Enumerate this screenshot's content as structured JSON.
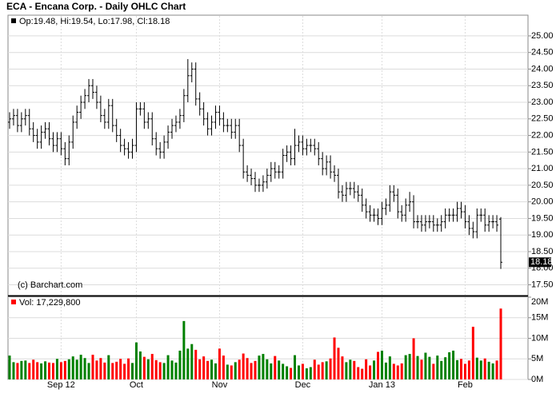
{
  "chart_data": [
    {
      "type": "ohlc",
      "title": "ECA - Encana Corp. - Daily OHLC Chart",
      "legend": "Op:19.48, Hi:19.54, Lo:17.98, Cl:18.18",
      "watermark": "(c) Barchart.com",
      "color": "#000000",
      "grid": true,
      "ylim": [
        17.2,
        25.6
      ],
      "yticks": [
        {
          "value": 17.5,
          "label": "17.50"
        },
        {
          "value": 18,
          "label": "18.00"
        },
        {
          "value": 18.5,
          "label": "18.50"
        },
        {
          "value": 19,
          "label": "19.00"
        },
        {
          "value": 19.5,
          "label": "19.50"
        },
        {
          "value": 20,
          "label": "20.00"
        },
        {
          "value": 20.5,
          "label": "20.50"
        },
        {
          "value": 21,
          "label": "21.00"
        },
        {
          "value": 21.5,
          "label": "21.50"
        },
        {
          "value": 22,
          "label": "22.00"
        },
        {
          "value": 22.5,
          "label": "22.50"
        },
        {
          "value": 23,
          "label": "23.00"
        },
        {
          "value": 23.5,
          "label": "23.50"
        },
        {
          "value": 24,
          "label": "24.00"
        },
        {
          "value": 24.5,
          "label": "24.50"
        },
        {
          "value": 25,
          "label": "25.00"
        }
      ],
      "categories": [
        null,
        null,
        null,
        null,
        null,
        null,
        null,
        null,
        null,
        null,
        null,
        null,
        null,
        "Sep 12",
        null,
        null,
        null,
        null,
        null,
        null,
        null,
        null,
        null,
        null,
        null,
        null,
        null,
        null,
        null,
        null,
        null,
        null,
        "Oct",
        null,
        null,
        null,
        null,
        null,
        null,
        null,
        null,
        null,
        null,
        null,
        null,
        null,
        null,
        null,
        null,
        null,
        null,
        null,
        null,
        "Nov",
        null,
        null,
        null,
        null,
        null,
        null,
        null,
        null,
        null,
        null,
        null,
        null,
        null,
        null,
        null,
        null,
        null,
        null,
        null,
        null,
        "Dec",
        null,
        null,
        null,
        null,
        null,
        null,
        null,
        null,
        null,
        null,
        null,
        null,
        null,
        null,
        null,
        null,
        null,
        null,
        null,
        "Jan 13",
        null,
        null,
        null,
        null,
        null,
        null,
        null,
        null,
        null,
        null,
        null,
        null,
        null,
        null,
        null,
        null,
        null,
        null,
        null,
        null,
        "Feb",
        null,
        null,
        null,
        null,
        null,
        null,
        null,
        null,
        null
      ],
      "open": [
        22.4,
        22.5,
        22.6,
        22.3,
        22.5,
        22.6,
        22.2,
        22.0,
        21.8,
        22.1,
        22.2,
        21.9,
        21.7,
        21.9,
        21.6,
        21.3,
        21.8,
        22.4,
        22.7,
        23.0,
        23.2,
        23.5,
        23.3,
        23.0,
        22.6,
        22.4,
        22.9,
        22.3,
        22.0,
        21.7,
        21.6,
        21.5,
        21.7,
        22.8,
        22.8,
        22.4,
        22.5,
        21.9,
        21.6,
        21.5,
        21.8,
        22.1,
        22.3,
        22.4,
        22.6,
        23.2,
        23.8,
        24.0,
        23.1,
        22.8,
        22.5,
        22.2,
        22.4,
        22.7,
        22.5,
        22.3,
        22.3,
        22.1,
        22.3,
        21.7,
        20.9,
        20.8,
        20.7,
        20.5,
        20.5,
        20.6,
        20.8,
        21.0,
        20.9,
        20.9,
        21.4,
        21.5,
        21.3,
        21.7,
        21.8,
        21.6,
        21.7,
        21.7,
        21.6,
        21.3,
        21.0,
        21.2,
        20.9,
        20.8,
        20.3,
        20.2,
        20.4,
        20.4,
        20.3,
        20.2,
        19.9,
        19.7,
        19.6,
        19.6,
        19.5,
        19.8,
        19.9,
        20.3,
        20.2,
        19.7,
        19.6,
        19.9,
        20.0,
        19.4,
        19.4,
        19.3,
        19.4,
        19.4,
        19.3,
        19.3,
        19.4,
        19.6,
        19.6,
        19.6,
        19.8,
        19.7,
        19.4,
        19.2,
        19.1,
        19.6,
        19.6,
        19.3,
        19.4,
        19.4,
        19.48
      ],
      "high": [
        22.7,
        22.8,
        22.8,
        22.7,
        22.8,
        22.8,
        22.4,
        22.2,
        22.3,
        22.4,
        22.4,
        22.1,
        22.1,
        22.1,
        21.8,
        22.0,
        22.6,
        22.9,
        23.2,
        23.4,
        23.7,
        23.7,
        23.5,
        23.2,
        22.8,
        23.1,
        23.1,
        22.5,
        22.2,
        21.9,
        21.8,
        21.9,
        23.0,
        23.0,
        23.0,
        22.7,
        22.7,
        22.1,
        21.8,
        22.0,
        22.3,
        22.5,
        22.6,
        22.8,
        23.4,
        24.3,
        24.2,
        24.2,
        23.3,
        23.0,
        22.7,
        22.6,
        22.9,
        22.9,
        22.7,
        22.5,
        22.5,
        22.5,
        22.5,
        21.9,
        21.1,
        21.0,
        20.9,
        20.7,
        20.8,
        21.0,
        21.2,
        21.2,
        21.1,
        21.6,
        21.7,
        21.7,
        22.2,
        22.0,
        22.0,
        21.9,
        21.9,
        21.9,
        21.8,
        21.5,
        21.4,
        21.4,
        21.1,
        21.0,
        20.5,
        20.6,
        20.6,
        20.6,
        20.5,
        20.4,
        20.1,
        19.9,
        19.8,
        19.8,
        20.0,
        20.1,
        20.5,
        20.5,
        20.4,
        19.9,
        20.1,
        20.3,
        20.2,
        19.6,
        19.6,
        19.6,
        19.6,
        19.6,
        19.5,
        19.6,
        19.8,
        19.8,
        19.8,
        20.0,
        20.0,
        19.9,
        19.6,
        19.4,
        19.8,
        19.8,
        19.8,
        19.6,
        19.6,
        19.6,
        19.54
      ],
      "low": [
        22.2,
        22.3,
        22.1,
        22.1,
        22.3,
        22.0,
        21.8,
        21.6,
        21.6,
        21.9,
        21.7,
        21.5,
        21.5,
        21.4,
        21.1,
        21.1,
        21.6,
        22.2,
        22.5,
        22.8,
        23.0,
        23.1,
        22.8,
        22.4,
        22.2,
        22.2,
        22.1,
        21.8,
        21.5,
        21.4,
        21.3,
        21.3,
        21.5,
        22.6,
        22.2,
        22.2,
        21.7,
        21.4,
        21.3,
        21.3,
        21.6,
        21.9,
        22.1,
        22.2,
        22.4,
        23.0,
        23.6,
        22.9,
        22.6,
        22.3,
        22.0,
        22.0,
        22.2,
        22.3,
        22.1,
        22.1,
        21.9,
        21.9,
        21.5,
        20.7,
        20.6,
        20.5,
        20.3,
        20.3,
        20.3,
        20.4,
        20.6,
        20.7,
        20.7,
        20.7,
        21.2,
        21.1,
        21.1,
        21.5,
        21.4,
        21.4,
        21.5,
        21.4,
        21.1,
        20.8,
        20.8,
        20.7,
        20.6,
        20.1,
        20.0,
        20.0,
        20.2,
        20.1,
        20.0,
        19.7,
        19.5,
        19.4,
        19.4,
        19.3,
        19.3,
        19.6,
        19.7,
        20.0,
        19.5,
        19.4,
        19.4,
        19.7,
        19.2,
        19.2,
        19.1,
        19.1,
        19.2,
        19.1,
        19.1,
        19.1,
        19.2,
        19.4,
        19.4,
        19.4,
        19.5,
        19.2,
        19.0,
        18.9,
        18.9,
        19.4,
        19.1,
        19.1,
        19.2,
        19.1,
        17.98
      ],
      "close": [
        22.5,
        22.6,
        22.3,
        22.5,
        22.6,
        22.2,
        22.0,
        21.8,
        22.1,
        22.2,
        21.9,
        21.7,
        21.9,
        21.6,
        21.3,
        21.8,
        22.4,
        22.7,
        23.0,
        23.2,
        23.5,
        23.3,
        23.0,
        22.6,
        22.4,
        22.9,
        22.3,
        22.0,
        21.7,
        21.6,
        21.5,
        21.7,
        22.8,
        22.8,
        22.4,
        22.5,
        21.9,
        21.6,
        21.5,
        21.8,
        22.1,
        22.3,
        22.4,
        22.6,
        23.2,
        23.8,
        24.0,
        23.1,
        22.8,
        22.5,
        22.2,
        22.4,
        22.7,
        22.5,
        22.3,
        22.3,
        22.1,
        22.3,
        21.7,
        20.9,
        20.8,
        20.7,
        20.5,
        20.5,
        20.6,
        20.8,
        21.0,
        20.9,
        20.9,
        21.4,
        21.5,
        21.3,
        21.7,
        21.8,
        21.6,
        21.7,
        21.7,
        21.6,
        21.3,
        21.0,
        21.2,
        20.9,
        20.8,
        20.3,
        20.2,
        20.4,
        20.4,
        20.3,
        20.2,
        19.9,
        19.7,
        19.6,
        19.6,
        19.5,
        19.8,
        19.9,
        20.3,
        20.2,
        19.7,
        19.6,
        19.9,
        20.0,
        19.4,
        19.4,
        19.3,
        19.4,
        19.4,
        19.3,
        19.3,
        19.4,
        19.6,
        19.6,
        19.6,
        19.8,
        19.7,
        19.4,
        19.2,
        19.1,
        19.6,
        19.6,
        19.3,
        19.4,
        19.4,
        19.3,
        18.18
      ]
    },
    {
      "type": "bar",
      "legend": "Vol: 17,229,800",
      "up_color": "#008000",
      "down_color": "#ff0000",
      "ylim": [
        0,
        20000000
      ],
      "yticks": [
        {
          "value": 0,
          "label": "0M"
        },
        {
          "value": 5000000,
          "label": "5M"
        },
        {
          "value": 10000000,
          "label": "10M"
        },
        {
          "value": 15000000,
          "label": "15M"
        },
        {
          "value": 20000000,
          "label": "20M"
        }
      ],
      "values": [
        5800000,
        4200000,
        4000000,
        4500000,
        4600000,
        4000000,
        4800000,
        4200000,
        3900000,
        4400000,
        4100000,
        4000000,
        5000000,
        4200000,
        4500000,
        4900000,
        5600000,
        4800000,
        6000000,
        5200000,
        4000000,
        6000000,
        4600000,
        5200000,
        4100000,
        5900000,
        4000000,
        4300000,
        5000000,
        3800000,
        5100000,
        4000000,
        9000000,
        6800000,
        5500000,
        4900000,
        6200000,
        4700000,
        4200000,
        4000000,
        5900000,
        4600000,
        4100000,
        7000000,
        14200000,
        7500000,
        8600000,
        7200000,
        4900000,
        5600000,
        4500000,
        4800000,
        3900000,
        7500000,
        5800000,
        3600000,
        3400000,
        4200000,
        4800000,
        6300000,
        5200000,
        4000000,
        4500000,
        5800000,
        6200000,
        4900000,
        3900000,
        5700000,
        4600000,
        3800000,
        3200000,
        2800000,
        5900000,
        3400000,
        3800000,
        2700000,
        3000000,
        4800000,
        3600000,
        4200000,
        4400000,
        5100000,
        10200000,
        7700000,
        5600000,
        4200000,
        4800000,
        4500000,
        3000000,
        2600000,
        4900000,
        3400000,
        4600000,
        6700000,
        7000000,
        4100000,
        5600000,
        3800000,
        3400000,
        3900000,
        5900000,
        6200000,
        10000000,
        5700000,
        4800000,
        6500000,
        5500000,
        3800000,
        5800000,
        4500000,
        5400000,
        6600000,
        7000000,
        4700000,
        5000000,
        3800000,
        4600000,
        12800000,
        5300000,
        4600000,
        5100000,
        4300000,
        3900000,
        4600000,
        17229800
      ]
    }
  ]
}
